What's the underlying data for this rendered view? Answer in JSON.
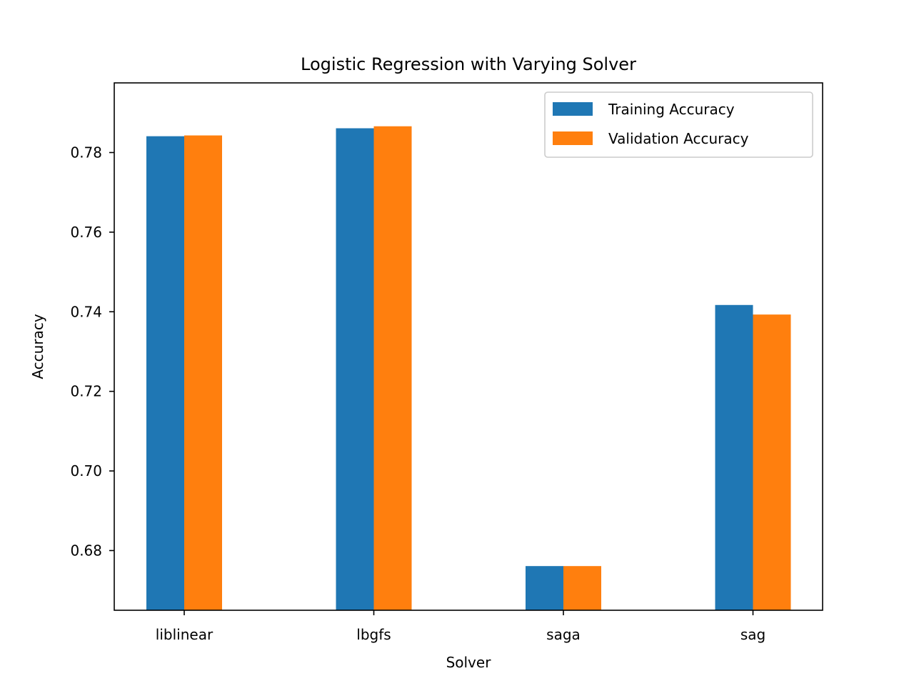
{
  "chart_data": {
    "type": "bar",
    "title": "Logistic Regression with Varying Solver",
    "xlabel": "Solver",
    "ylabel": "Accuracy",
    "categories": [
      "liblinear",
      "lbgfs",
      "saga",
      "sag"
    ],
    "series": [
      {
        "name": "Training Accuracy",
        "color": "#1f77b4",
        "values": [
          0.7841,
          0.7861,
          0.6761,
          0.7417
        ]
      },
      {
        "name": "Validation Accuracy",
        "color": "#ff7f0e",
        "values": [
          0.7843,
          0.7866,
          0.6761,
          0.7393
        ]
      }
    ],
    "ylim": [
      0.665,
      0.7975
    ],
    "yticks": [
      0.68,
      0.7,
      0.72,
      0.74,
      0.76,
      0.78
    ],
    "ytick_labels": [
      "0.68",
      "0.70",
      "0.72",
      "0.74",
      "0.76",
      "0.78"
    ],
    "grid": false,
    "legend_position": "top-right"
  }
}
